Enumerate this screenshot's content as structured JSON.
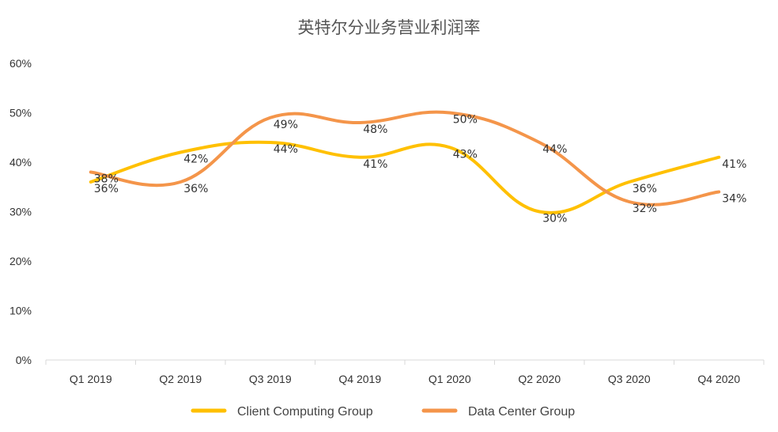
{
  "chart_data": {
    "type": "line",
    "title": "英特尔分业务营业利润率",
    "xlabel": "",
    "ylabel": "",
    "categories": [
      "Q1 2019",
      "Q2 2019",
      "Q3 2019",
      "Q4 2019",
      "Q1 2020",
      "Q2 2020",
      "Q3 2020",
      "Q4 2020"
    ],
    "ylim": [
      0,
      60
    ],
    "yticks": [
      "0%",
      "10%",
      "20%",
      "30%",
      "40%",
      "50%",
      "60%"
    ],
    "grid": false,
    "smooth": true,
    "legend_position": "bottom",
    "series": [
      {
        "name": "Client Computing Group",
        "color": "#FFC000",
        "values": [
          36,
          42,
          44,
          41,
          43,
          30,
          36,
          41
        ],
        "labels": [
          "36%",
          "42%",
          "44%",
          "41%",
          "43%",
          "30%",
          "36%",
          "41%"
        ]
      },
      {
        "name": "Data Center Group",
        "color": "#F4954A",
        "values": [
          38,
          36,
          49,
          48,
          50,
          44,
          32,
          34
        ],
        "labels": [
          "38%",
          "36%",
          "49%",
          "48%",
          "50%",
          "44%",
          "32%",
          "34%"
        ]
      }
    ]
  }
}
